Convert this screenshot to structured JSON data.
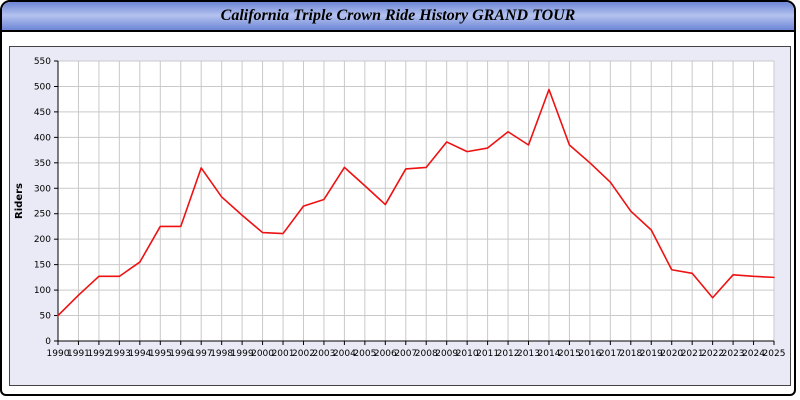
{
  "header": {
    "title": "California Triple Crown Ride History GRAND TOUR"
  },
  "chart_data": {
    "type": "line",
    "title": "California Triple Crown Ride History GRAND TOUR",
    "xlabel": "",
    "ylabel": "Riders",
    "x": [
      1990,
      1991,
      1992,
      1993,
      1994,
      1995,
      1996,
      1997,
      1998,
      1999,
      2000,
      2001,
      2002,
      2003,
      2004,
      2005,
      2006,
      2007,
      2008,
      2009,
      2010,
      2011,
      2012,
      2013,
      2014,
      2015,
      2016,
      2017,
      2018,
      2019,
      2020,
      2021,
      2022,
      2023,
      2024,
      2025
    ],
    "series": [
      {
        "name": "Riders",
        "color": "#ee1111",
        "values": [
          50,
          90,
          127,
          127,
          155,
          225,
          225,
          340,
          283,
          247,
          213,
          211,
          265,
          278,
          341,
          305,
          268,
          338,
          341,
          391,
          372,
          379,
          411,
          385,
          494,
          385,
          350,
          312,
          255,
          218,
          140,
          133,
          85,
          130,
          127,
          125
        ]
      }
    ],
    "ylim": [
      0,
      550
    ],
    "ytick_step": 50,
    "grid": true,
    "grid_color": "#c9c9c9",
    "plot_bg": "#ffffff",
    "panel_bg": "#eaeaf6",
    "legend_position": "none"
  }
}
